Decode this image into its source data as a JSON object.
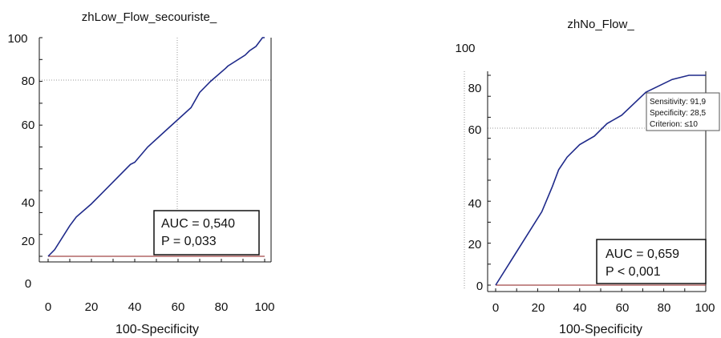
{
  "colors": {
    "curve": "#1f2a8a",
    "reference": "#8b1a1a",
    "grid": "#9a9a9a",
    "axis": "#111111"
  },
  "chart_data": [
    {
      "type": "line",
      "title": "zhLow_Flow_secouriste_",
      "xlabel": "100-Specificity",
      "ylabel": "",
      "xlim": [
        0,
        100
      ],
      "ylim": [
        0,
        100
      ],
      "x_ticks": [
        "0",
        "20",
        "40",
        "60",
        "80",
        "100"
      ],
      "y_tick_labels": [
        "100",
        "80",
        "60",
        "40",
        "20",
        "0"
      ],
      "grid": "dotted",
      "series": [
        {
          "x": [
            0,
            3,
            10,
            13,
            20,
            30,
            38,
            40,
            46,
            56,
            66,
            70,
            75,
            82,
            83,
            91,
            93,
            96,
            99,
            100
          ],
          "y": [
            0,
            3,
            14,
            18,
            24,
            34,
            42,
            43,
            50,
            59,
            68,
            75,
            80,
            86,
            87,
            92,
            94,
            96,
            100,
            100
          ]
        }
      ],
      "reference": {
        "x": [
          0,
          100
        ],
        "y": [
          0,
          0
        ]
      },
      "annotation": {
        "auc": "AUC = 0,540",
        "p": "P = 0,033",
        "position": "bottom-right"
      }
    },
    {
      "type": "line",
      "title": "zhNo_Flow_",
      "xlabel": "100-Specificity",
      "ylabel": "",
      "xlim": [
        0,
        100
      ],
      "ylim": [
        0,
        100
      ],
      "x_ticks": [
        "0",
        "20",
        "40",
        "60",
        "80",
        "100"
      ],
      "y_tick_labels": [
        "100",
        "80",
        "60",
        "40",
        "20",
        "0"
      ],
      "grid": "dotted",
      "series": [
        {
          "x": [
            0,
            22,
            27,
            30,
            34,
            40,
            47,
            53,
            60,
            71.5,
            84,
            92,
            96,
            100
          ],
          "y": [
            0,
            35,
            47,
            55,
            61,
            67,
            71,
            77,
            81,
            91.9,
            98,
            100,
            100,
            100
          ]
        }
      ],
      "reference": {
        "x": [
          0,
          100
        ],
        "y": [
          0,
          0
        ]
      },
      "tooltip": {
        "sensitivity": "Sensitivity: 91,9",
        "specificity": "Specificity: 28,5",
        "criterion": "Criterion: ≤10"
      },
      "annotation": {
        "auc": "AUC = 0,659",
        "p": "P < 0,001",
        "position": "bottom-right"
      }
    }
  ]
}
